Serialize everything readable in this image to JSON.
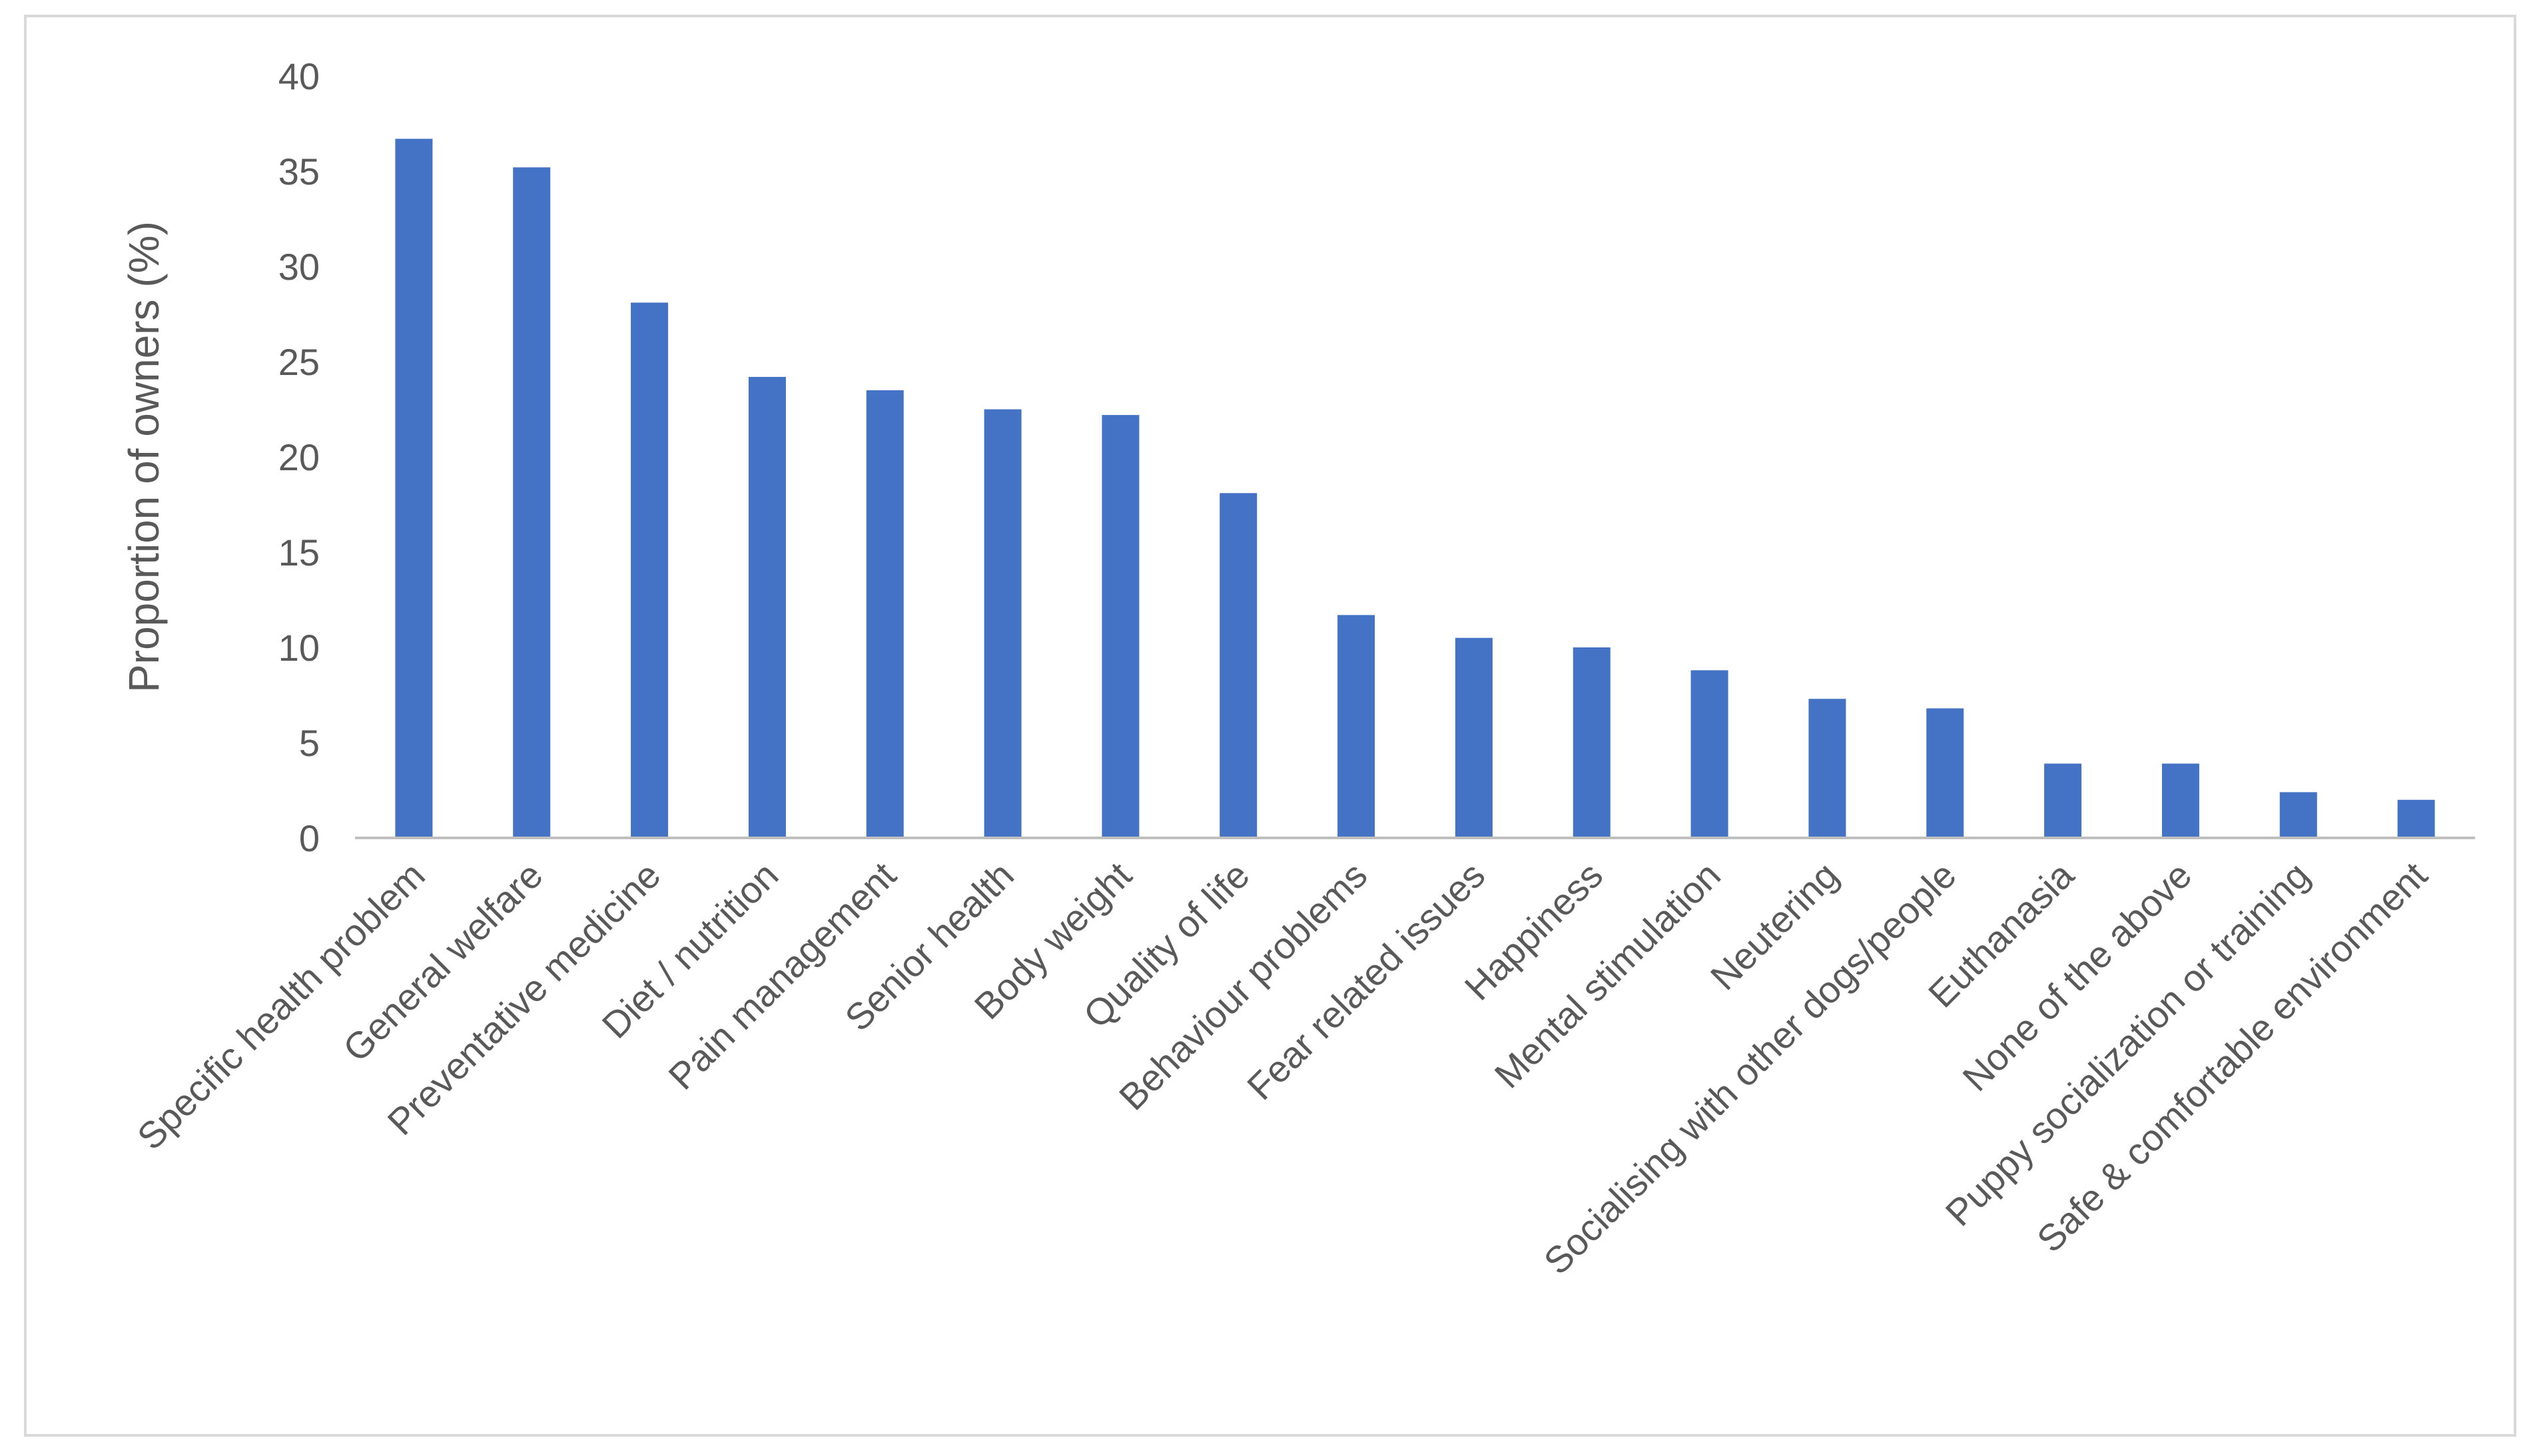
{
  "chart_data": {
    "type": "bar",
    "title": "",
    "xlabel": "",
    "ylabel": "Proportion of owners (%)",
    "ylim": [
      0,
      40
    ],
    "yticks": [
      0,
      5,
      10,
      15,
      20,
      25,
      30,
      35,
      40
    ],
    "grid": false,
    "legend": "none",
    "bar_color": "#4472C4",
    "axis_color": "#bfbfbf",
    "text_color": "#595959",
    "categories": [
      "Specific health problem",
      "General welfare",
      "Preventative medicine",
      "Diet / nutrition",
      "Pain management",
      "Senior health",
      "Body weight",
      "Quality of life",
      "Behaviour problems",
      "Fear related issues",
      "Happiness",
      "Mental stimulation",
      "Neutering",
      "Socialising with other dogs/people",
      "Euthanasia",
      "None of the above",
      "Puppy socialization or training",
      "Safe & comfortable environment"
    ],
    "values": [
      36.7,
      35.2,
      28.1,
      24.2,
      23.5,
      22.5,
      22.2,
      18.1,
      11.7,
      10.5,
      10.0,
      8.8,
      7.3,
      6.8,
      3.9,
      3.9,
      2.4,
      2.0
    ]
  }
}
